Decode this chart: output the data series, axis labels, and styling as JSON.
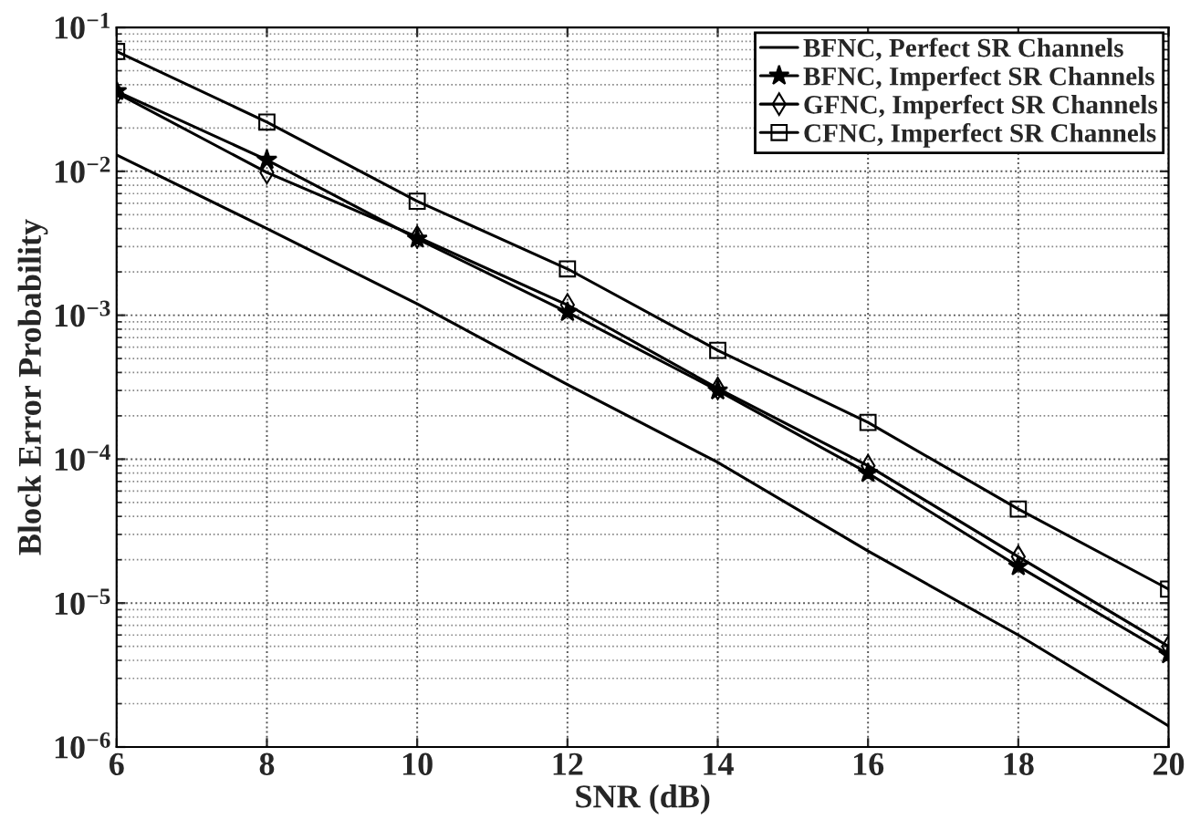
{
  "chart_data": {
    "type": "line",
    "xlabel": "SNR (dB)",
    "ylabel": "Block Error Probability",
    "x": [
      6,
      8,
      10,
      12,
      14,
      16,
      18,
      20
    ],
    "series": [
      {
        "name": "BFNC, Perfect SR Channels",
        "color": "#000000",
        "marker": "none",
        "values": [
          0.013,
          0.004,
          0.0012,
          0.00033,
          9.5e-05,
          2.3e-05,
          6e-06,
          1.4e-06
        ]
      },
      {
        "name": "BFNC, Imperfect SR Channels",
        "color": "#000000",
        "marker": "star",
        "values": [
          0.036,
          0.012,
          0.0034,
          0.00105,
          0.0003,
          8e-05,
          1.8e-05,
          4.4e-06
        ]
      },
      {
        "name": "GFNC, Imperfect SR Channels",
        "color": "#000000",
        "marker": "diamond",
        "values": [
          0.035,
          0.0098,
          0.0035,
          0.00118,
          0.00031,
          9e-05,
          2.1e-05,
          5e-06
        ]
      },
      {
        "name": "CFNC, Imperfect SR Channels",
        "color": "#000000",
        "marker": "square",
        "values": [
          0.068,
          0.022,
          0.0062,
          0.0021,
          0.00057,
          0.00018,
          4.5e-05,
          1.25e-05
        ]
      }
    ],
    "log": "y",
    "xlim": [
      6,
      20
    ],
    "xticks": [
      6,
      8,
      10,
      12,
      14,
      16,
      18,
      20
    ],
    "ylim": [
      1e-06,
      0.1
    ],
    "yticks": [
      {
        "value": 1e-06,
        "label": "10$^{−6}$"
      },
      {
        "value": 1e-05,
        "label": "10$^{−5}$"
      },
      {
        "value": 0.0001,
        "label": "10$^{−4}$"
      },
      {
        "value": 0.001,
        "label": "10$^{−3}$"
      },
      {
        "value": 0.01,
        "label": "10$^{−2}$"
      },
      {
        "value": 0.1,
        "label": "10$^{−1}$"
      }
    ],
    "grid": true,
    "legend": "top right",
    "line_style": "solid"
  }
}
